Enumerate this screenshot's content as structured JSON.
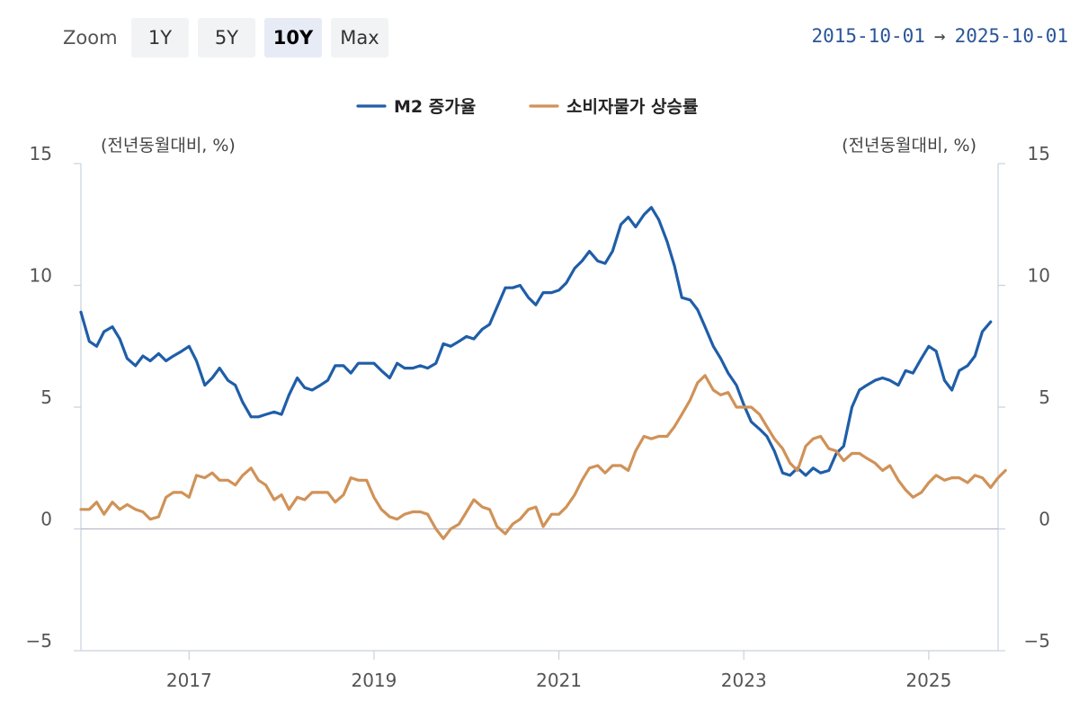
{
  "toolbar": {
    "zoom_label": "Zoom",
    "buttons": [
      {
        "label": "1Y",
        "active": false
      },
      {
        "label": "5Y",
        "active": false
      },
      {
        "label": "10Y",
        "active": true
      },
      {
        "label": "Max",
        "active": false
      }
    ],
    "range_start": "2015-10-01",
    "range_arrow": "→",
    "range_end": "2025-10-01"
  },
  "chart_data": {
    "type": "line",
    "title": "",
    "left_axis_label": "(전년동월대비, %)",
    "right_axis_label": "(전년동월대비, %)",
    "ylim": [
      -5,
      15
    ],
    "y_ticks": [
      -5,
      0,
      5,
      10,
      15
    ],
    "y_tick_labels": [
      "−5",
      "0",
      "5",
      "10",
      "15"
    ],
    "x_range": [
      2015.83,
      2025.75
    ],
    "x_ticks": [
      2017,
      2019,
      2021,
      2023,
      2025
    ],
    "x_tick_labels": [
      "2017",
      "2019",
      "2021",
      "2023",
      "2025"
    ],
    "legend_position": "top-center",
    "grid": false,
    "series": [
      {
        "name": "M2 증가율",
        "color": "#1f5ea8",
        "points": [
          [
            2015.83,
            8.9
          ],
          [
            2015.92,
            7.7
          ],
          [
            2016.0,
            7.5
          ],
          [
            2016.08,
            8.1
          ],
          [
            2016.17,
            8.3
          ],
          [
            2016.25,
            7.8
          ],
          [
            2016.33,
            7.0
          ],
          [
            2016.42,
            6.7
          ],
          [
            2016.5,
            7.1
          ],
          [
            2016.58,
            6.9
          ],
          [
            2016.67,
            7.2
          ],
          [
            2016.75,
            6.9
          ],
          [
            2016.83,
            7.1
          ],
          [
            2016.92,
            7.3
          ],
          [
            2017.0,
            7.5
          ],
          [
            2017.08,
            6.9
          ],
          [
            2017.17,
            5.9
          ],
          [
            2017.25,
            6.2
          ],
          [
            2017.33,
            6.6
          ],
          [
            2017.42,
            6.1
          ],
          [
            2017.5,
            5.9
          ],
          [
            2017.58,
            5.2
          ],
          [
            2017.67,
            4.6
          ],
          [
            2017.75,
            4.6
          ],
          [
            2017.83,
            4.7
          ],
          [
            2017.92,
            4.8
          ],
          [
            2018.0,
            4.7
          ],
          [
            2018.08,
            5.5
          ],
          [
            2018.17,
            6.2
          ],
          [
            2018.25,
            5.8
          ],
          [
            2018.33,
            5.7
          ],
          [
            2018.42,
            5.9
          ],
          [
            2018.5,
            6.1
          ],
          [
            2018.58,
            6.7
          ],
          [
            2018.67,
            6.7
          ],
          [
            2018.75,
            6.4
          ],
          [
            2018.83,
            6.8
          ],
          [
            2018.92,
            6.8
          ],
          [
            2019.0,
            6.8
          ],
          [
            2019.08,
            6.5
          ],
          [
            2019.17,
            6.2
          ],
          [
            2019.25,
            6.8
          ],
          [
            2019.33,
            6.6
          ],
          [
            2019.42,
            6.6
          ],
          [
            2019.5,
            6.7
          ],
          [
            2019.58,
            6.6
          ],
          [
            2019.67,
            6.8
          ],
          [
            2019.75,
            7.6
          ],
          [
            2019.83,
            7.5
          ],
          [
            2019.92,
            7.7
          ],
          [
            2020.0,
            7.9
          ],
          [
            2020.08,
            7.8
          ],
          [
            2020.17,
            8.2
          ],
          [
            2020.25,
            8.4
          ],
          [
            2020.33,
            9.1
          ],
          [
            2020.42,
            9.9
          ],
          [
            2020.5,
            9.9
          ],
          [
            2020.58,
            10.0
          ],
          [
            2020.67,
            9.5
          ],
          [
            2020.75,
            9.2
          ],
          [
            2020.83,
            9.7
          ],
          [
            2020.92,
            9.7
          ],
          [
            2021.0,
            9.8
          ],
          [
            2021.08,
            10.1
          ],
          [
            2021.17,
            10.7
          ],
          [
            2021.25,
            11.0
          ],
          [
            2021.33,
            11.4
          ],
          [
            2021.42,
            11.0
          ],
          [
            2021.5,
            10.9
          ],
          [
            2021.58,
            11.4
          ],
          [
            2021.67,
            12.5
          ],
          [
            2021.75,
            12.8
          ],
          [
            2021.83,
            12.4
          ],
          [
            2021.92,
            12.9
          ],
          [
            2022.0,
            13.2
          ],
          [
            2022.08,
            12.7
          ],
          [
            2022.17,
            11.8
          ],
          [
            2022.25,
            10.8
          ],
          [
            2022.33,
            9.5
          ],
          [
            2022.42,
            9.4
          ],
          [
            2022.5,
            9.0
          ],
          [
            2022.58,
            8.3
          ],
          [
            2022.67,
            7.5
          ],
          [
            2022.75,
            7.0
          ],
          [
            2022.83,
            6.4
          ],
          [
            2022.92,
            5.9
          ],
          [
            2023.0,
            5.1
          ],
          [
            2023.08,
            4.4
          ],
          [
            2023.17,
            4.1
          ],
          [
            2023.25,
            3.8
          ],
          [
            2023.33,
            3.2
          ],
          [
            2023.42,
            2.3
          ],
          [
            2023.5,
            2.2
          ],
          [
            2023.58,
            2.5
          ],
          [
            2023.67,
            2.2
          ],
          [
            2023.75,
            2.5
          ],
          [
            2023.83,
            2.3
          ],
          [
            2023.92,
            2.4
          ],
          [
            2024.0,
            3.1
          ],
          [
            2024.08,
            3.4
          ],
          [
            2024.17,
            5.0
          ],
          [
            2024.25,
            5.7
          ],
          [
            2024.33,
            5.9
          ],
          [
            2024.42,
            6.1
          ],
          [
            2024.5,
            6.2
          ],
          [
            2024.58,
            6.1
          ],
          [
            2024.67,
            5.9
          ],
          [
            2024.75,
            6.5
          ],
          [
            2024.83,
            6.4
          ],
          [
            2024.92,
            7.0
          ],
          [
            2025.0,
            7.5
          ],
          [
            2025.08,
            7.3
          ],
          [
            2025.17,
            6.1
          ],
          [
            2025.25,
            5.7
          ],
          [
            2025.33,
            6.5
          ],
          [
            2025.42,
            6.7
          ],
          [
            2025.5,
            7.1
          ],
          [
            2025.58,
            8.1
          ],
          [
            2025.67,
            8.5
          ]
        ]
      },
      {
        "name": "소비자물가 상승률",
        "color": "#d09258",
        "points": [
          [
            2015.83,
            0.8
          ],
          [
            2015.92,
            0.8
          ],
          [
            2016.0,
            1.1
          ],
          [
            2016.08,
            0.6
          ],
          [
            2016.17,
            1.1
          ],
          [
            2016.25,
            0.8
          ],
          [
            2016.33,
            1.0
          ],
          [
            2016.42,
            0.8
          ],
          [
            2016.5,
            0.7
          ],
          [
            2016.58,
            0.4
          ],
          [
            2016.67,
            0.5
          ],
          [
            2016.75,
            1.3
          ],
          [
            2016.83,
            1.5
          ],
          [
            2016.92,
            1.5
          ],
          [
            2017.0,
            1.3
          ],
          [
            2017.08,
            2.2
          ],
          [
            2017.17,
            2.1
          ],
          [
            2017.25,
            2.3
          ],
          [
            2017.33,
            2.0
          ],
          [
            2017.42,
            2.0
          ],
          [
            2017.5,
            1.8
          ],
          [
            2017.58,
            2.2
          ],
          [
            2017.67,
            2.5
          ],
          [
            2017.75,
            2.0
          ],
          [
            2017.83,
            1.8
          ],
          [
            2017.92,
            1.2
          ],
          [
            2018.0,
            1.4
          ],
          [
            2018.08,
            0.8
          ],
          [
            2018.17,
            1.3
          ],
          [
            2018.25,
            1.2
          ],
          [
            2018.33,
            1.5
          ],
          [
            2018.42,
            1.5
          ],
          [
            2018.5,
            1.5
          ],
          [
            2018.58,
            1.1
          ],
          [
            2018.67,
            1.4
          ],
          [
            2018.75,
            2.1
          ],
          [
            2018.83,
            2.0
          ],
          [
            2018.92,
            2.0
          ],
          [
            2019.0,
            1.3
          ],
          [
            2019.08,
            0.8
          ],
          [
            2019.17,
            0.5
          ],
          [
            2019.25,
            0.4
          ],
          [
            2019.33,
            0.6
          ],
          [
            2019.42,
            0.7
          ],
          [
            2019.5,
            0.7
          ],
          [
            2019.58,
            0.6
          ],
          [
            2019.67,
            0.0
          ],
          [
            2019.75,
            -0.4
          ],
          [
            2019.83,
            0.0
          ],
          [
            2019.92,
            0.2
          ],
          [
            2020.0,
            0.7
          ],
          [
            2020.08,
            1.2
          ],
          [
            2020.17,
            0.9
          ],
          [
            2020.25,
            0.8
          ],
          [
            2020.33,
            0.1
          ],
          [
            2020.42,
            -0.2
          ],
          [
            2020.5,
            0.2
          ],
          [
            2020.58,
            0.4
          ],
          [
            2020.67,
            0.8
          ],
          [
            2020.75,
            0.9
          ],
          [
            2020.83,
            0.1
          ],
          [
            2020.92,
            0.6
          ],
          [
            2021.0,
            0.6
          ],
          [
            2021.08,
            0.9
          ],
          [
            2021.17,
            1.4
          ],
          [
            2021.25,
            2.0
          ],
          [
            2021.33,
            2.5
          ],
          [
            2021.42,
            2.6
          ],
          [
            2021.5,
            2.3
          ],
          [
            2021.58,
            2.6
          ],
          [
            2021.67,
            2.6
          ],
          [
            2021.75,
            2.4
          ],
          [
            2021.83,
            3.2
          ],
          [
            2021.92,
            3.8
          ],
          [
            2022.0,
            3.7
          ],
          [
            2022.08,
            3.8
          ],
          [
            2022.17,
            3.8
          ],
          [
            2022.25,
            4.2
          ],
          [
            2022.33,
            4.7
          ],
          [
            2022.42,
            5.3
          ],
          [
            2022.5,
            6.0
          ],
          [
            2022.58,
            6.3
          ],
          [
            2022.67,
            5.7
          ],
          [
            2022.75,
            5.5
          ],
          [
            2022.83,
            5.6
          ],
          [
            2022.92,
            5.0
          ],
          [
            2023.0,
            5.0
          ],
          [
            2023.08,
            5.0
          ],
          [
            2023.17,
            4.7
          ],
          [
            2023.25,
            4.2
          ],
          [
            2023.33,
            3.7
          ],
          [
            2023.42,
            3.3
          ],
          [
            2023.5,
            2.7
          ],
          [
            2023.58,
            2.4
          ],
          [
            2023.67,
            3.4
          ],
          [
            2023.75,
            3.7
          ],
          [
            2023.83,
            3.8
          ],
          [
            2023.92,
            3.3
          ],
          [
            2024.0,
            3.2
          ],
          [
            2024.08,
            2.8
          ],
          [
            2024.17,
            3.1
          ],
          [
            2024.25,
            3.1
          ],
          [
            2024.33,
            2.9
          ],
          [
            2024.42,
            2.7
          ],
          [
            2024.5,
            2.4
          ],
          [
            2024.58,
            2.6
          ],
          [
            2024.67,
            2.0
          ],
          [
            2024.75,
            1.6
          ],
          [
            2024.83,
            1.3
          ],
          [
            2024.92,
            1.5
          ],
          [
            2025.0,
            1.9
          ],
          [
            2025.08,
            2.2
          ],
          [
            2025.17,
            2.0
          ],
          [
            2025.25,
            2.1
          ],
          [
            2025.33,
            2.1
          ],
          [
            2025.42,
            1.9
          ],
          [
            2025.5,
            2.2
          ],
          [
            2025.58,
            2.1
          ],
          [
            2025.67,
            1.7
          ],
          [
            2025.75,
            2.1
          ],
          [
            2025.83,
            2.4
          ]
        ]
      }
    ]
  }
}
